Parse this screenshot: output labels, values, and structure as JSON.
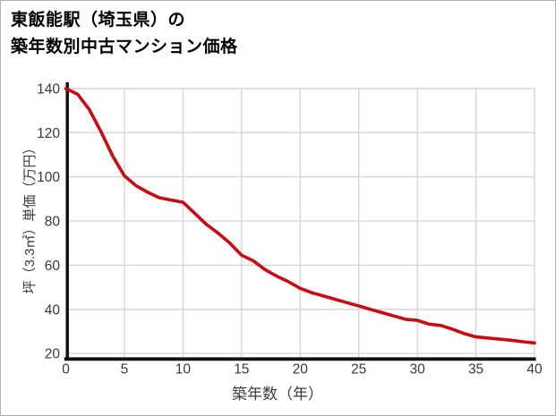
{
  "title": {
    "line1": "東飯能駅（埼玉県）の",
    "line2": "築年数別中古マンション価格"
  },
  "chart_data": {
    "type": "line",
    "title": "東飯能駅（埼玉県）の築年数別中古マンション価格",
    "xlabel": "築年数（年）",
    "ylabel": "坪（3.3㎡）単価（万円）",
    "x": [
      0,
      1,
      2,
      3,
      4,
      5,
      6,
      7,
      8,
      9,
      10,
      11,
      12,
      13,
      14,
      15,
      16,
      17,
      18,
      19,
      20,
      21,
      22,
      23,
      24,
      25,
      26,
      27,
      28,
      29,
      30,
      31,
      32,
      33,
      34,
      35,
      36,
      37,
      38,
      39,
      40
    ],
    "y": [
      140,
      137.5,
      130.5,
      120.5,
      109.5,
      100.5,
      96,
      93,
      90.5,
      89.5,
      88.5,
      83.5,
      78.5,
      74.5,
      70,
      64.5,
      62,
      58,
      55,
      52.5,
      49.5,
      47.5,
      46,
      44.5,
      43,
      41.5,
      40,
      38.5,
      37,
      35.5,
      35,
      33.3,
      32.7,
      31,
      29,
      27.5,
      27,
      26.5,
      26,
      25.3,
      24.8
    ],
    "xticks": [
      0,
      5,
      10,
      15,
      20,
      25,
      30,
      35,
      40
    ],
    "yticks": [
      20,
      40,
      60,
      80,
      100,
      120,
      140
    ],
    "xlim": [
      0,
      40
    ],
    "ylim": [
      20,
      140
    ],
    "grid": true,
    "legend_position": "none",
    "line_color": "#cc0a11",
    "grid_color": "#d6d6d6",
    "axis_color": "#111111",
    "tick_label_color": "#383838"
  }
}
